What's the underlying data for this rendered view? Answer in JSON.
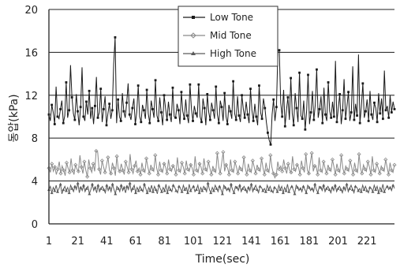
{
  "chart_data": {
    "type": "line",
    "xlabel": "Time(sec)",
    "ylabel": "동압(kPa)",
    "ylim": [
      0,
      20
    ],
    "xlim": [
      1,
      240
    ],
    "yticks": [
      "0",
      "4",
      "8",
      "12",
      "16",
      "20"
    ],
    "xticks": [
      "1",
      "21",
      "41",
      "61",
      "81",
      "101",
      "121",
      "141",
      "161",
      "181",
      "201",
      "221"
    ],
    "grid": "horizontal",
    "legend_position": "top-center",
    "series": [
      {
        "name": "Low Tone",
        "color": "#1a1a1a",
        "marker": "square",
        "values": [
          10.2,
          9.6,
          11.1,
          10.4,
          9.3,
          12.8,
          10.0,
          9.8,
          10.7,
          11.5,
          9.4,
          10.1,
          13.2,
          9.9,
          10.6,
          9.1,
          11.8,
          10.3,
          9.7,
          12.1,
          10.5,
          9.2,
          10.9,
          14.6,
          10.0,
          9.6,
          11.4,
          10.2,
          12.4,
          9.8,
          10.8,
          9.3,
          11.0,
          13.7,
          9.9,
          10.4,
          12.6,
          9.5,
          10.7,
          11.9,
          9.2,
          10.3,
          11.2,
          9.8,
          10.6,
          14.9,
          10.1,
          9.4,
          11.6,
          10.0,
          9.6,
          12.2,
          10.5,
          9.9,
          11.3,
          13.1,
          10.2,
          9.7,
          10.8,
          11.7,
          9.3,
          10.4,
          12.9,
          10.0,
          9.5,
          11.1,
          10.6,
          9.8,
          12.5,
          10.3,
          9.4,
          11.5,
          10.7,
          9.9,
          13.4,
          10.1,
          9.6,
          11.8,
          10.4,
          9.2,
          12.0,
          10.8,
          9.7,
          11.4,
          10.2,
          9.5,
          12.7,
          10.0,
          9.9,
          11.2,
          10.6,
          9.3,
          12.3,
          10.5,
          9.8,
          11.6,
          10.1,
          9.4,
          13.0,
          10.7,
          9.6,
          11.0,
          10.3,
          9.9,
          12.4,
          10.0,
          9.5,
          11.7,
          10.8,
          9.2,
          12.1,
          10.4,
          9.7,
          11.3,
          10.6,
          9.8,
          12.8,
          10.2,
          9.4,
          11.5,
          10.9,
          9.6,
          12.2,
          10.0,
          9.3,
          11.1,
          10.5,
          9.8,
          13.3,
          10.3,
          9.7,
          11.9,
          10.1,
          9.5,
          12.0,
          10.7,
          9.9,
          11.4,
          10.2,
          9.4,
          12.6,
          10.6,
          9.6,
          11.2,
          10.0,
          9.2,
          12.9,
          10.4,
          9.8,
          11.7,
          10.8,
          9.5,
          8.5,
          7.8,
          7.4,
          10.2,
          11.6,
          9.6,
          10.9,
          16.1,
          9.4,
          11.3,
          10.0,
          12.5,
          9.1,
          10.6,
          11.8,
          9.7,
          13.6,
          10.3,
          9.2,
          12.2,
          10.8,
          9.5,
          14.1,
          10.1,
          9.8,
          11.5,
          8.8,
          10.6,
          13.9,
          9.3,
          10.4,
          12.4,
          9.7,
          11.1,
          14.4,
          9.9,
          10.7,
          11.9,
          9.4,
          12.7,
          10.2,
          9.6,
          13.2,
          10.5,
          9.9,
          11.4,
          10.0,
          15.2,
          9.5,
          10.8,
          12.1,
          9.3,
          10.6,
          13.5,
          9.8,
          11.0,
          12.3,
          9.6,
          10.4,
          14.7,
          9.7,
          11.2,
          10.1,
          12.8,
          9.4,
          10.9,
          13.1,
          9.9,
          10.5,
          11.6,
          9.6,
          12.4,
          10.2,
          9.7,
          11.3,
          10.8,
          9.5,
          12.2,
          10.3,
          11.7,
          9.8,
          14.3,
          10.6,
          11.0,
          9.9,
          12.0,
          10.4,
          11.4,
          10.7
        ],
        "spikes": [
          [
            15,
            14.8
          ],
          [
            46,
            17.4
          ],
          [
            104,
            13.0
          ],
          [
            160,
            16.2
          ],
          [
            215,
            15.8
          ]
        ]
      },
      {
        "name": "Mid Tone",
        "color": "#8a8a8a",
        "marker": "diamond",
        "values": [
          5.2,
          4.8,
          5.6,
          4.9,
          5.3,
          4.6,
          5.1,
          5.8,
          4.7,
          5.4,
          5.0,
          4.5,
          5.7,
          5.2,
          4.8,
          6.1,
          5.0,
          4.6,
          5.5,
          5.1,
          4.9,
          6.4,
          5.3,
          4.7,
          5.8,
          5.0,
          4.4,
          6.0,
          5.2,
          4.8,
          5.6,
          4.9,
          5.4,
          6.7,
          5.1,
          4.6,
          5.9,
          5.3,
          4.8,
          5.5,
          6.2,
          5.0,
          4.7,
          5.7,
          5.2,
          4.5,
          6.3,
          5.1,
          4.9,
          5.6,
          5.0,
          4.6,
          5.8,
          5.3,
          4.8,
          6.5,
          5.1,
          4.7,
          5.4,
          5.9,
          4.9,
          5.2,
          4.6,
          5.7,
          5.0,
          4.8,
          6.1,
          5.3,
          4.7,
          5.5,
          5.1,
          4.9,
          6.4,
          5.2,
          4.6,
          5.8,
          5.0,
          4.8,
          5.6,
          5.3,
          4.7,
          6.0,
          5.1,
          4.9,
          5.4,
          5.2,
          4.6,
          6.2,
          5.0,
          4.8,
          5.7,
          5.3,
          4.7,
          5.9,
          5.1,
          4.9,
          5.5,
          5.2,
          4.6,
          6.3,
          5.0,
          4.8,
          5.6,
          5.3,
          4.7,
          6.1,
          5.1,
          4.9,
          5.8,
          5.2,
          4.6,
          5.4,
          5.0,
          4.8,
          6.6,
          5.3,
          4.7,
          5.7,
          5.1,
          4.9,
          5.5,
          5.2,
          4.6,
          6.0,
          5.0,
          4.8,
          5.8,
          5.3,
          4.7,
          5.4,
          5.1,
          4.9,
          6.2,
          5.2,
          4.6,
          5.6,
          5.0,
          4.8,
          5.9,
          5.3,
          4.7,
          5.5,
          5.1,
          4.9,
          6.1,
          5.2,
          4.6,
          5.7,
          5.0,
          4.8,
          6.4,
          5.3,
          4.7,
          4.3,
          4.6,
          5.8,
          5.1,
          5.4,
          4.9,
          6.0,
          5.2,
          4.7,
          5.6,
          5.0,
          4.8,
          6.3,
          5.1,
          4.9,
          5.5,
          5.3,
          4.6,
          5.9,
          5.2,
          4.8,
          6.5,
          5.0,
          4.7,
          5.7,
          5.1,
          4.9,
          5.4,
          5.3,
          4.6,
          6.2,
          5.0,
          4.8,
          5.8,
          5.2,
          4.7,
          5.5,
          5.1,
          4.9,
          6.0,
          5.3,
          4.6,
          5.6,
          5.0,
          4.8,
          6.4,
          5.2,
          4.7,
          5.4,
          5.1,
          4.9,
          5.9,
          5.3,
          4.6,
          5.7,
          5.0,
          4.8,
          6.1,
          5.2,
          4.7,
          5.5,
          5.1,
          4.9,
          5.8,
          5.3,
          4.6,
          6.3,
          5.0,
          4.8,
          5.6,
          5.2,
          4.7,
          5.4,
          5.1,
          4.9,
          6.0,
          5.3,
          4.6,
          5.7,
          5.0,
          4.8,
          5.5
        ],
        "spikes": [
          [
            32,
            6.8
          ],
          [
            118,
            6.7
          ],
          [
            178,
            6.6
          ],
          [
            210,
            6.5
          ]
        ]
      },
      {
        "name": "High Tone",
        "color": "#5a5a5a",
        "marker": "triangle",
        "values": [
          3.2,
          3.5,
          2.9,
          3.4,
          3.1,
          3.6,
          3.0,
          3.3,
          3.7,
          2.8,
          3.2,
          3.5,
          3.1,
          3.4,
          2.9,
          3.6,
          3.3,
          3.0,
          3.5,
          3.2,
          3.8,
          2.9,
          3.4,
          3.1,
          3.6,
          3.0,
          3.3,
          3.5,
          2.8,
          3.2,
          3.7,
          3.1,
          3.4,
          2.9,
          3.6,
          3.0,
          3.3,
          3.5,
          3.2,
          2.9,
          3.6,
          3.1,
          3.4,
          3.0,
          3.7,
          3.2,
          2.8,
          3.5,
          3.3,
          3.0,
          3.6,
          3.1,
          3.4,
          2.9,
          3.5,
          3.2,
          3.8,
          3.0,
          3.3,
          3.6,
          2.9,
          3.4,
          3.1,
          3.5,
          3.2,
          3.0,
          3.7,
          3.3,
          2.9,
          3.4,
          3.1,
          3.6,
          3.0,
          3.5,
          3.2,
          2.8,
          3.6,
          3.3,
          3.0,
          3.4,
          3.1,
          3.7,
          2.9,
          3.5,
          3.2,
          3.0,
          3.6,
          3.4,
          3.1,
          2.9,
          3.5,
          3.3,
          3.0,
          3.6,
          3.2,
          3.4,
          2.9,
          3.7,
          3.1,
          3.3,
          3.5,
          3.0,
          3.2,
          3.6,
          2.9,
          3.4,
          3.1,
          3.5,
          3.3,
          3.0,
          3.8,
          3.2,
          2.9,
          3.4,
          3.1,
          3.6,
          3.3,
          3.0,
          3.5,
          3.2,
          2.8,
          3.6,
          3.4,
          3.1,
          3.3,
          3.0,
          3.7,
          3.2,
          2.9,
          3.5,
          3.4,
          3.1,
          3.6,
          3.0,
          3.3,
          3.5,
          3.2,
          2.9,
          3.4,
          3.1,
          3.7,
          3.0,
          3.3,
          3.6,
          3.2,
          2.9,
          3.5,
          3.4,
          3.1,
          3.3,
          3.0,
          3.6,
          3.2,
          3.5,
          3.1,
          2.9,
          3.4,
          3.3,
          3.0,
          3.6,
          3.2,
          3.5,
          2.9,
          3.4,
          3.1,
          3.7,
          3.0,
          3.3,
          3.5,
          3.2,
          2.8,
          3.6,
          3.4,
          3.1,
          3.3,
          3.0,
          3.5,
          3.2,
          2.9,
          3.6,
          3.4,
          3.1,
          3.3,
          3.0,
          3.7,
          3.2,
          2.9,
          3.5,
          3.4,
          3.1,
          3.6,
          3.0,
          3.3,
          3.5,
          3.2,
          2.9,
          3.4,
          3.1,
          3.6,
          3.0,
          3.3,
          3.5,
          3.2,
          2.9,
          3.4,
          3.1,
          3.7,
          3.0,
          3.3,
          3.6,
          3.2,
          2.9,
          3.5,
          3.4,
          3.1,
          3.3,
          3.0,
          3.6,
          3.2,
          3.5,
          3.1,
          2.9,
          3.4,
          3.3,
          3.0,
          3.6,
          3.2,
          3.5,
          2.9,
          3.4,
          3.1,
          3.7,
          3.0,
          3.3,
          3.5,
          3.2,
          3.4,
          3.1,
          3.6,
          3.3
        ]
      }
    ]
  }
}
